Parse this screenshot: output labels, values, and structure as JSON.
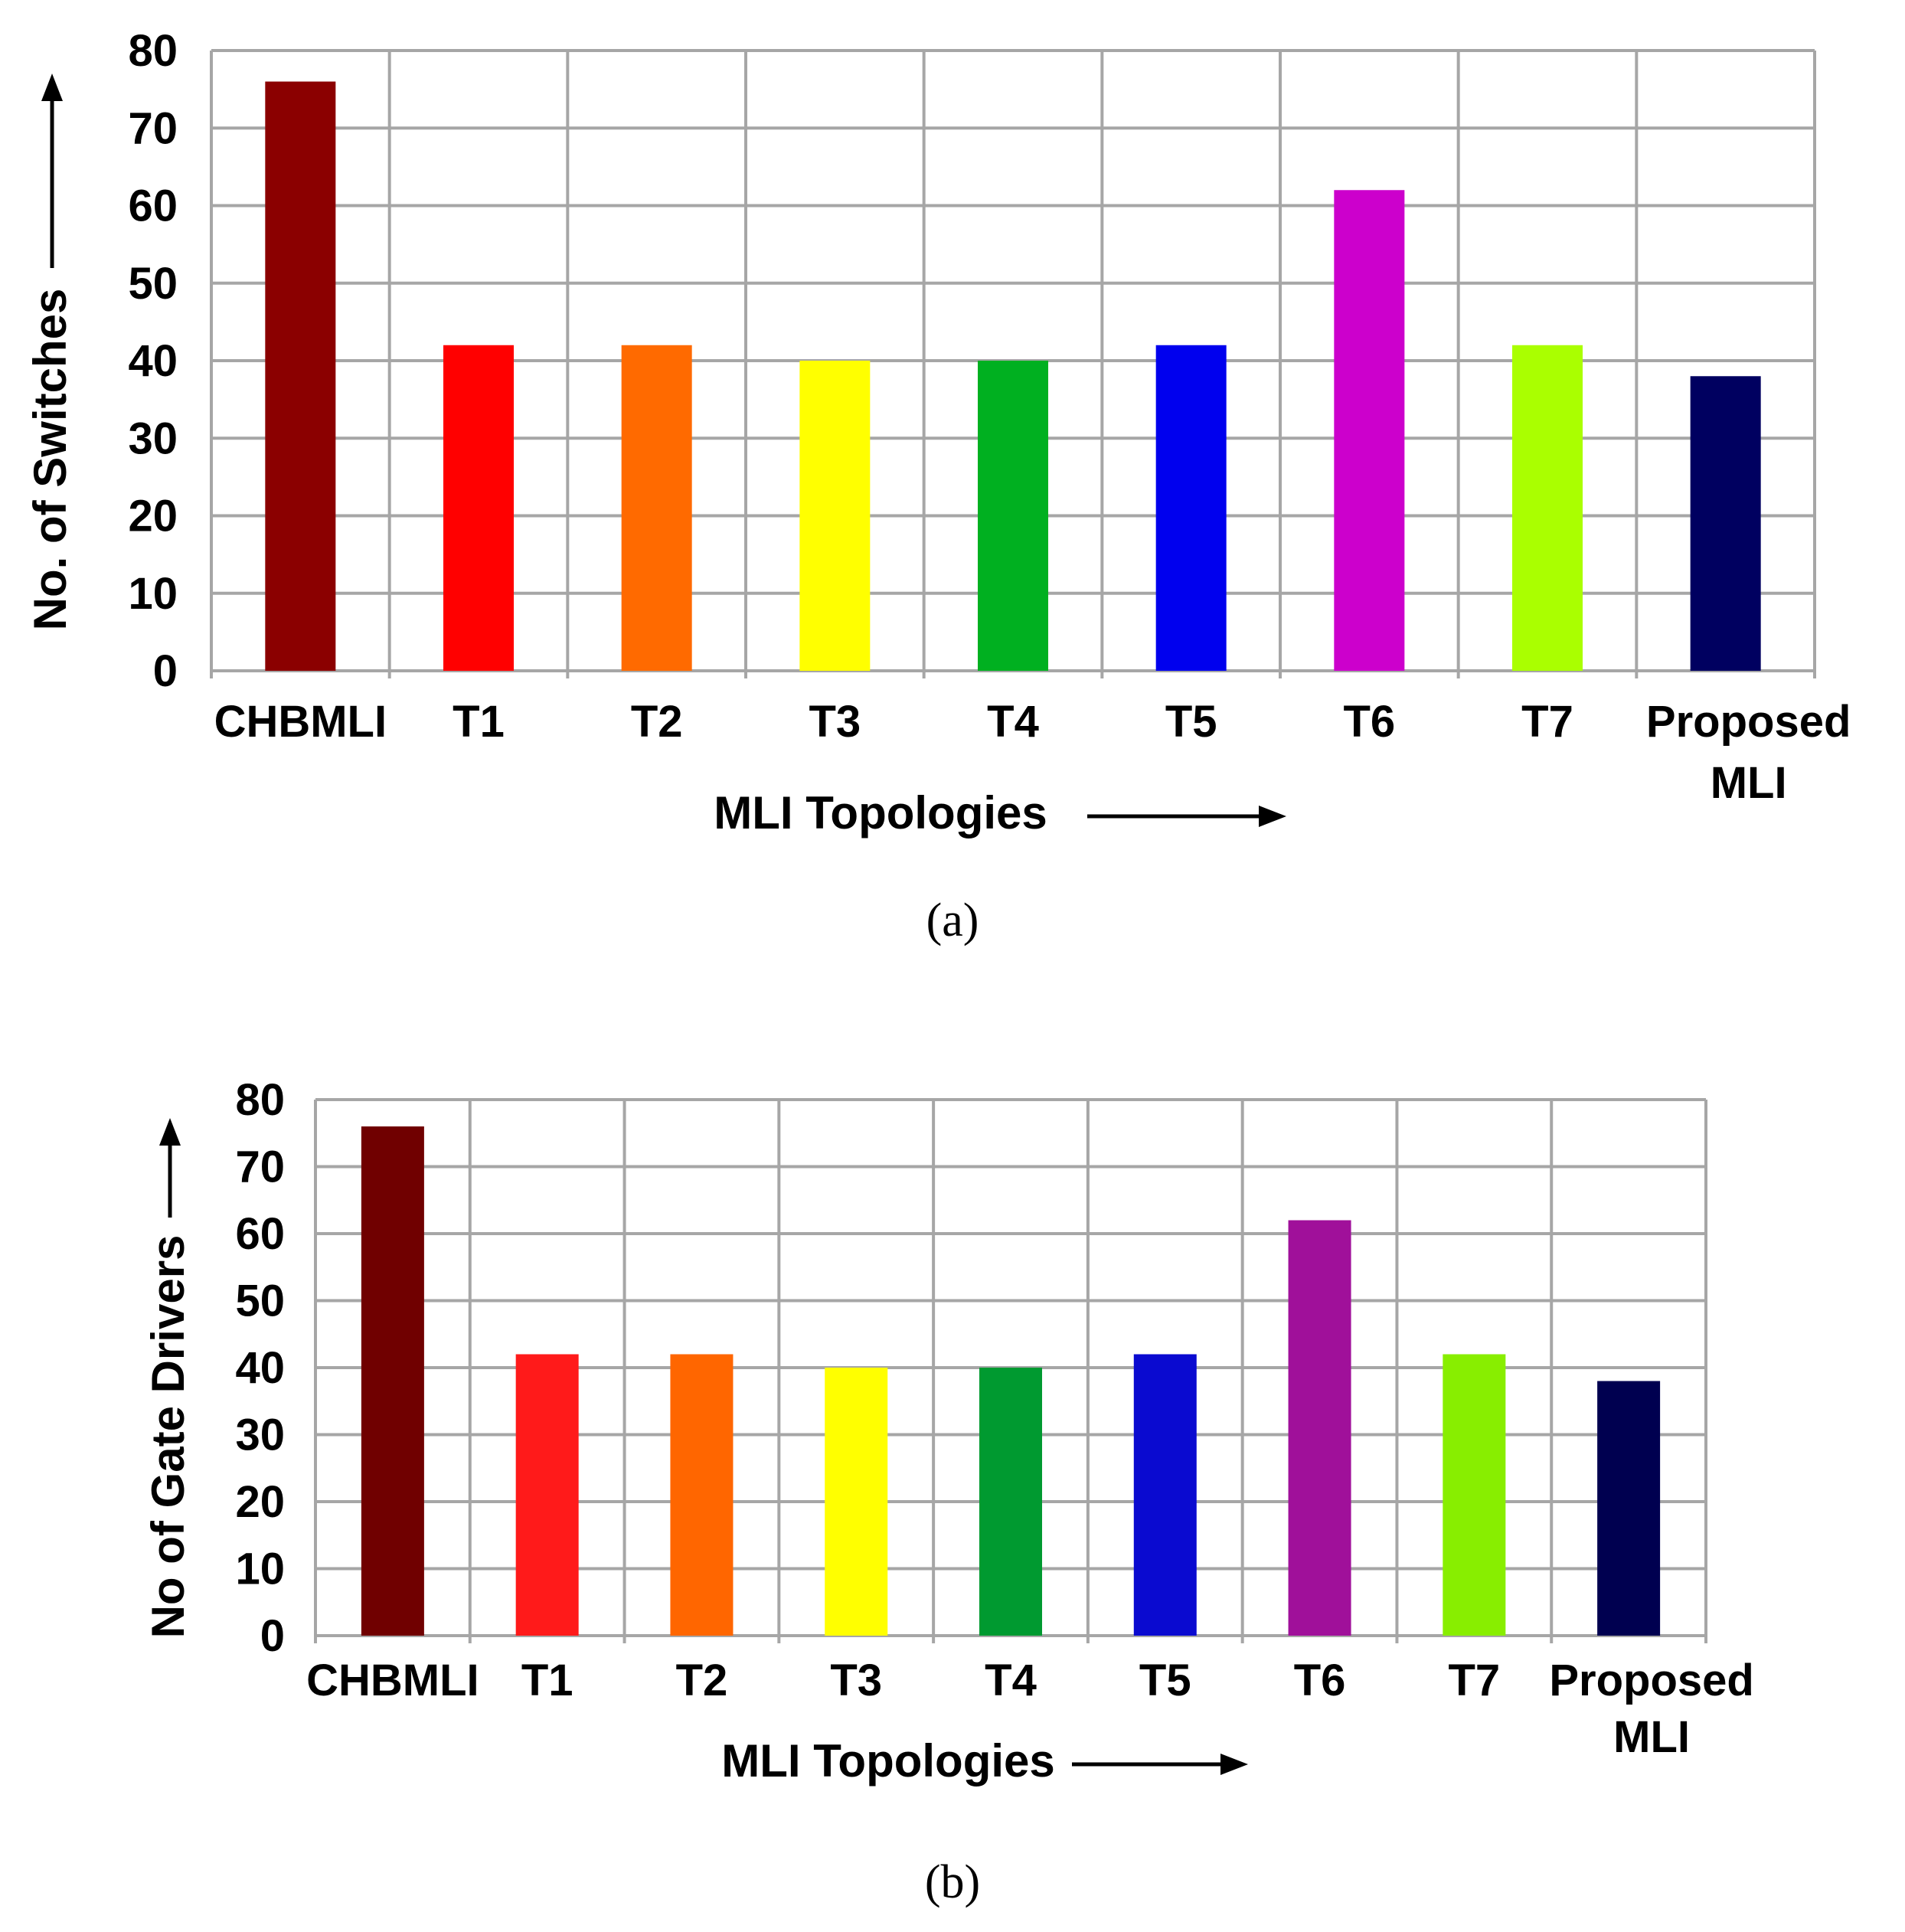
{
  "chart_data": [
    {
      "type": "bar",
      "caption": "(a)",
      "categories": [
        "CHBMLI",
        "T1",
        "T2",
        "T3",
        "T4",
        "T5",
        "T6",
        "T7",
        "Proposed MLI"
      ],
      "values": [
        76,
        42,
        42,
        40,
        40,
        42,
        62,
        42,
        38
      ],
      "colors": [
        "#8b0000",
        "#ff0000",
        "#ff6a00",
        "#ffff00",
        "#00b020",
        "#0000ee",
        "#cc00cc",
        "#aaff00",
        "#000060"
      ],
      "xlabel": "MLI Topologies",
      "ylabel": "No. of Switches",
      "ylim": [
        0,
        80
      ],
      "yticks": [
        0,
        10,
        20,
        30,
        40,
        50,
        60,
        70,
        80
      ],
      "grid": true
    },
    {
      "type": "bar",
      "caption": "(b)",
      "categories": [
        "CHBMLI",
        "T1",
        "T2",
        "T3",
        "T4",
        "T5",
        "T6",
        "T7",
        "Proposed MLI"
      ],
      "values": [
        76,
        42,
        42,
        40,
        40,
        42,
        62,
        42,
        38
      ],
      "colors": [
        "#700000",
        "#ff1a1a",
        "#ff6600",
        "#ffff00",
        "#009a30",
        "#0a0ad0",
        "#a0109a",
        "#88ee00",
        "#000050"
      ],
      "xlabel": "MLI Topologies",
      "ylabel": "No of Gate Drivers",
      "ylim": [
        0,
        80
      ],
      "yticks": [
        0,
        10,
        20,
        30,
        40,
        50,
        60,
        70,
        80
      ],
      "grid": true
    }
  ]
}
